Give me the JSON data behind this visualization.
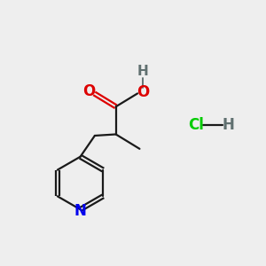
{
  "background_color": "#eeeeee",
  "bond_color": "#1a1a1a",
  "O_color": "#dd0000",
  "N_color": "#0000ee",
  "H_color": "#607070",
  "Cl_color": "#00cc00",
  "line_width": 1.6,
  "font_size": 11,
  "figsize": [
    3.0,
    3.0
  ],
  "dpi": 100,
  "xlim": [
    0,
    10
  ],
  "ylim": [
    0,
    10
  ]
}
